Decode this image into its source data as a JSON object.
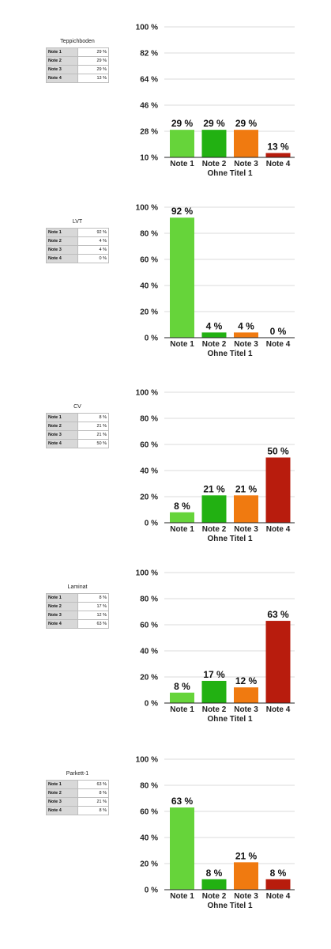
{
  "chart_data": [
    {
      "type": "bar",
      "table_title": "Teppichboden",
      "categories": [
        "Note 1",
        "Note 2",
        "Note 3",
        "Note 4"
      ],
      "values": [
        29,
        29,
        29,
        13
      ],
      "value_labels": [
        "29 %",
        "29 %",
        "29 %",
        "13 %"
      ],
      "ytick_labels": [
        "10 %",
        "28 %",
        "46 %",
        "64 %",
        "82 %",
        "100 %"
      ],
      "ylim": [
        10,
        100
      ],
      "xlabel": "Ohne Titel 1"
    },
    {
      "type": "bar",
      "table_title": "LVT",
      "categories": [
        "Note 1",
        "Note 2",
        "Note 3",
        "Note 4"
      ],
      "values": [
        92,
        4,
        4,
        0
      ],
      "value_labels": [
        "92 %",
        "4 %",
        "4 %",
        "0 %"
      ],
      "ytick_labels": [
        "0 %",
        "20 %",
        "40 %",
        "60 %",
        "80 %",
        "100 %"
      ],
      "ylim": [
        0,
        100
      ],
      "xlabel": "Ohne Titel 1"
    },
    {
      "type": "bar",
      "table_title": "CV",
      "categories": [
        "Note 1",
        "Note 2",
        "Note 3",
        "Note 4"
      ],
      "values": [
        8,
        21,
        21,
        50
      ],
      "value_labels": [
        "8 %",
        "21 %",
        "21 %",
        "50 %"
      ],
      "ytick_labels": [
        "0 %",
        "20 %",
        "40 %",
        "60 %",
        "80 %",
        "100 %"
      ],
      "ylim": [
        0,
        100
      ],
      "xlabel": "Ohne Titel 1"
    },
    {
      "type": "bar",
      "table_title": "Laminat",
      "categories": [
        "Note 1",
        "Note 2",
        "Note 3",
        "Note 4"
      ],
      "values": [
        8,
        17,
        12,
        63
      ],
      "value_labels": [
        "8 %",
        "17 %",
        "12 %",
        "63 %"
      ],
      "ytick_labels": [
        "0 %",
        "20 %",
        "40 %",
        "60 %",
        "80 %",
        "100 %"
      ],
      "ylim": [
        0,
        100
      ],
      "xlabel": "Ohne Titel 1"
    },
    {
      "type": "bar",
      "table_title": "Parkett-1",
      "categories": [
        "Note 1",
        "Note 2",
        "Note 3",
        "Note 4"
      ],
      "values": [
        63,
        8,
        21,
        8
      ],
      "value_labels": [
        "63 %",
        "8 %",
        "21 %",
        "8 %"
      ],
      "ytick_labels": [
        "0 %",
        "20 %",
        "40 %",
        "60 %",
        "80 %",
        "100 %"
      ],
      "ylim": [
        0,
        100
      ],
      "xlabel": "Ohne Titel 1"
    }
  ],
  "colors": {
    "note1": "#66d43a",
    "note2": "#22b112",
    "note3": "#f07a10",
    "note4": "#b81c0d",
    "grid": "#cfcfcf",
    "axis": "#222222"
  }
}
